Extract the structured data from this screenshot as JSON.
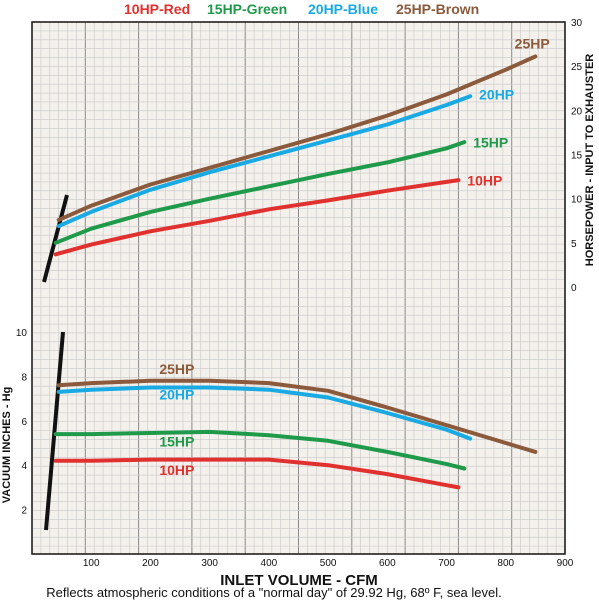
{
  "legend": [
    {
      "text": "10HP-Red",
      "color": "#e0312f"
    },
    {
      "text": "15HP-Green",
      "color": "#1f9a4a"
    },
    {
      "text": "20HP-Blue",
      "color": "#19a9e3"
    },
    {
      "text": "25HP-Brown",
      "color": "#8b5a3c"
    }
  ],
  "footnote": "Reflects atmospheric conditions of a \"normal day\" of 29.92 Hg, 68º F, sea level.",
  "colors": {
    "red": "#e0312f",
    "green": "#1f9a4a",
    "blue": "#19a9e3",
    "brown": "#8b5a3c",
    "grid_minor": "#c8c8c8",
    "grid_major": "#8a8a8a",
    "background": "#f4f1ec"
  },
  "chart_data": [
    {
      "type": "line",
      "panel": "horsepower",
      "xlabel": "INLET VOLUME - CFM",
      "ylabel": "HORSEPOWER - INPUT TO EXHAUSTER",
      "y_axis_side": "right",
      "xlim": [
        0,
        900
      ],
      "ylim": [
        0,
        30
      ],
      "x_ticks": [
        "100",
        "200",
        "300",
        "400",
        "500",
        "600",
        "700",
        "800",
        "900"
      ],
      "y_ticks": [
        "0",
        "5",
        "10",
        "15",
        "20",
        "25",
        "30"
      ],
      "grid": true,
      "series": [
        {
          "name": "10HP",
          "color": "#e0312f",
          "x": [
            40,
            100,
            200,
            300,
            400,
            500,
            600,
            700,
            720
          ],
          "y": [
            3.7,
            4.8,
            6.3,
            7.5,
            8.8,
            9.8,
            10.9,
            11.9,
            12.1
          ]
        },
        {
          "name": "15HP",
          "color": "#1f9a4a",
          "x": [
            40,
            100,
            200,
            300,
            400,
            500,
            600,
            700,
            730
          ],
          "y": [
            5.0,
            6.6,
            8.5,
            10.0,
            11.4,
            12.8,
            14.1,
            15.7,
            16.4
          ]
        },
        {
          "name": "20HP",
          "color": "#19a9e3",
          "x": [
            45,
            100,
            200,
            300,
            400,
            500,
            600,
            700,
            740
          ],
          "y": [
            6.9,
            8.5,
            11.0,
            13.0,
            14.8,
            16.6,
            18.4,
            20.6,
            21.6
          ]
        },
        {
          "name": "25HP",
          "color": "#8b5a3c",
          "x": [
            45,
            100,
            200,
            300,
            400,
            500,
            600,
            700,
            800,
            850
          ],
          "y": [
            7.6,
            9.2,
            11.6,
            13.5,
            15.4,
            17.3,
            19.4,
            21.8,
            24.6,
            26.1
          ]
        }
      ],
      "labels": [
        {
          "text": "10HP",
          "series": "10HP",
          "x": 735,
          "y": 11.5
        },
        {
          "text": "15HP",
          "series": "15HP",
          "x": 745,
          "y": 15.8
        },
        {
          "text": "20HP",
          "series": "20HP",
          "x": 755,
          "y": 21.2
        },
        {
          "text": "25HP",
          "series": "25HP",
          "x": 815,
          "y": 27.0
        }
      ]
    },
    {
      "type": "line",
      "panel": "vacuum",
      "xlabel": "INLET VOLUME - CFM",
      "ylabel": "VACUUM INCHES - Hg",
      "y_axis_side": "left",
      "xlim": [
        0,
        900
      ],
      "ylim": [
        0,
        10
      ],
      "x_ticks": [
        "100",
        "200",
        "300",
        "400",
        "500",
        "600",
        "700",
        "800",
        "900"
      ],
      "y_ticks": [
        "2",
        "4",
        "6",
        "8",
        "10"
      ],
      "grid": true,
      "series": [
        {
          "name": "10HP",
          "color": "#e0312f",
          "x": [
            40,
            100,
            200,
            300,
            400,
            500,
            600,
            700,
            720
          ],
          "y": [
            4.2,
            4.2,
            4.25,
            4.25,
            4.25,
            4.0,
            3.6,
            3.1,
            3.0
          ]
        },
        {
          "name": "15HP",
          "color": "#1f9a4a",
          "x": [
            40,
            100,
            200,
            300,
            400,
            500,
            600,
            700,
            730
          ],
          "y": [
            5.4,
            5.4,
            5.45,
            5.5,
            5.35,
            5.1,
            4.6,
            4.05,
            3.85
          ]
        },
        {
          "name": "20HP",
          "color": "#19a9e3",
          "x": [
            45,
            100,
            200,
            300,
            400,
            500,
            600,
            700,
            740
          ],
          "y": [
            7.3,
            7.4,
            7.5,
            7.5,
            7.4,
            7.05,
            6.35,
            5.6,
            5.2
          ]
        },
        {
          "name": "25HP",
          "color": "#8b5a3c",
          "x": [
            45,
            100,
            200,
            300,
            400,
            500,
            600,
            700,
            800,
            850
          ],
          "y": [
            7.6,
            7.7,
            7.8,
            7.8,
            7.7,
            7.35,
            6.6,
            5.8,
            5.0,
            4.6
          ]
        }
      ],
      "labels": [
        {
          "text": "25HP",
          "series": "25HP",
          "x": 215,
          "y": 8.1
        },
        {
          "text": "20HP",
          "series": "20HP",
          "x": 215,
          "y": 6.95
        },
        {
          "text": "15HP",
          "series": "15HP",
          "x": 215,
          "y": 4.85
        },
        {
          "text": "10HP",
          "series": "10HP",
          "x": 215,
          "y": 3.55
        }
      ]
    }
  ]
}
